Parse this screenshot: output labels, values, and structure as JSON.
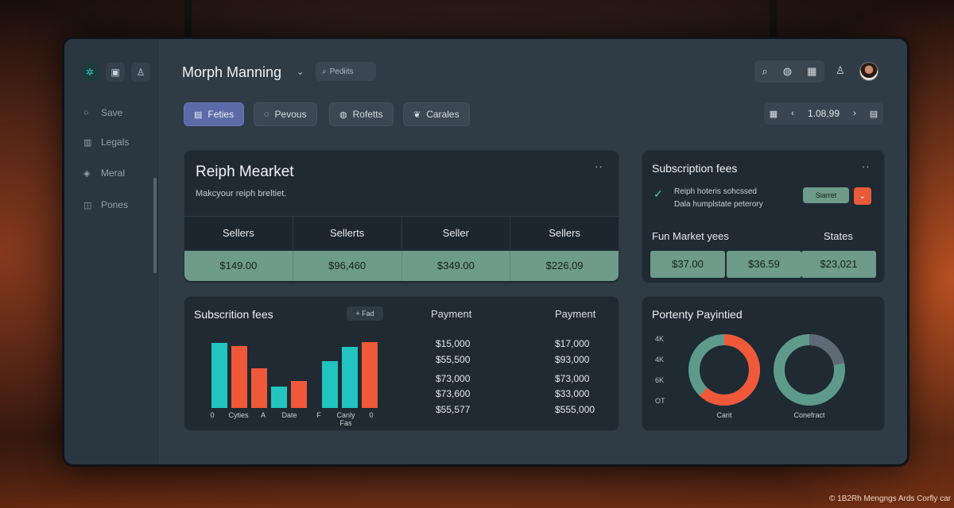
{
  "app": {
    "title": "Morph Manning",
    "search_placeholder": "Pediits"
  },
  "sidebar": {
    "icons": [
      "hexagon-icon",
      "image-icon",
      "user-icon"
    ],
    "items": [
      {
        "label": "Save",
        "icon": "search-icon"
      },
      {
        "label": "Legals",
        "icon": "bars-icon"
      },
      {
        "label": "Meral",
        "icon": "layers-icon"
      },
      {
        "label": "Pones",
        "icon": "doc-icon"
      }
    ]
  },
  "topbar": {
    "icons": [
      "search-icon",
      "globe-icon",
      "grid-icon",
      "user-icon"
    ],
    "pager_value": "1.08,99"
  },
  "tabs": [
    {
      "label": "Feties",
      "active": true
    },
    {
      "label": "Pevous",
      "active": false
    },
    {
      "label": "Rofetts",
      "active": false
    },
    {
      "label": "Carales",
      "active": false
    }
  ],
  "market": {
    "title": "Reiph Mearket",
    "subtitle": "Makcyour reiph breltiet.",
    "headers": [
      "Sellers",
      "Sellerts",
      "Seller",
      "Sellers"
    ],
    "values": [
      "$149.00",
      "$96,460",
      "$349.00",
      "$226,09"
    ]
  },
  "subscription": {
    "title": "Subscription fees",
    "line1": "Reiph hoteris sohcssed",
    "line2": "Dala humplstate peterory",
    "button": "Siarret",
    "left_head": "Fun Market yees",
    "right_head": "States",
    "values": [
      "$37.00",
      "$36.59",
      "$23,021"
    ]
  },
  "fees_chart": {
    "title": "Subscrition fees",
    "add_label": "Fad",
    "x_labels": [
      "0",
      "Cyties",
      "A",
      "Date",
      "F",
      "Canly Fas",
      "0"
    ]
  },
  "chart_data": {
    "type": "bar",
    "title": "Subscrition fees",
    "values": [
      82,
      78,
      50,
      27,
      34,
      59,
      77,
      83
    ],
    "colors": [
      "#22c4c0",
      "#f0583a",
      "#f0583a",
      "#22c4c0",
      "#f0583a",
      "#22c4c0",
      "#22c4c0",
      "#f0583a"
    ],
    "ylim": [
      0,
      100
    ],
    "grid": false
  },
  "payments": {
    "headers": [
      "Payment",
      "Payment"
    ],
    "col1": [
      "$15,000",
      "$55,500",
      "$73,000",
      "$73,600",
      "$55,577"
    ],
    "col2": [
      "$17,000",
      "$93,000",
      "$73,000",
      "$33,000",
      "$555,000"
    ]
  },
  "property": {
    "title": "Portenty Payintied",
    "ticks": [
      "4K",
      "4K",
      "6K",
      "OT"
    ],
    "donuts": [
      {
        "label": "Carit",
        "fraction": 0.62,
        "colors": [
          "#f0583a",
          "#5e9a8a"
        ]
      },
      {
        "label": "Conefract",
        "fraction": 0.22,
        "colors": [
          "#5e6a75",
          "#5e9a8a"
        ]
      }
    ]
  },
  "watermark": "© 1B2Rh Mengngs Ards Corfly car"
}
